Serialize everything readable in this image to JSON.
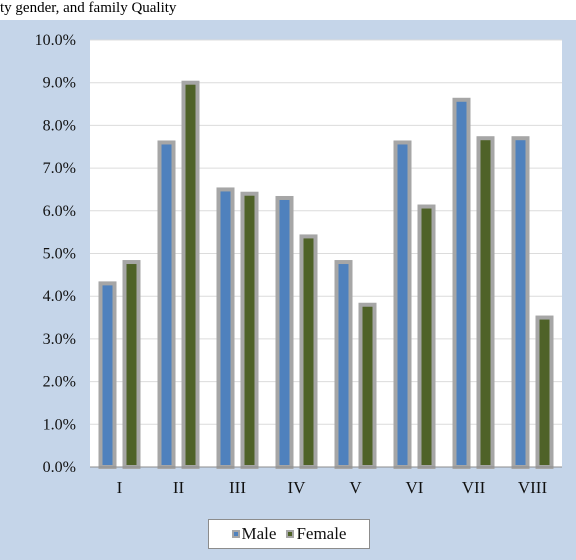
{
  "caption": "ty gender, and family Quality",
  "colors": {
    "background": "#c5d5e9",
    "plot_area": "#ffffff",
    "grid": "#dcdcdc",
    "bar_outline": "#a6a6a6",
    "male": "#4f81bd",
    "female": "#4f6228"
  },
  "chart_data": {
    "type": "bar",
    "title": "",
    "xlabel": "",
    "ylabel": "",
    "categories": [
      "I",
      "II",
      "III",
      "IV",
      "V",
      "VI",
      "VII",
      "VIII"
    ],
    "series": [
      {
        "name": "Male",
        "color": "#4f81bd",
        "values": [
          4.3,
          7.6,
          6.5,
          6.3,
          4.8,
          7.6,
          8.6,
          7.7
        ]
      },
      {
        "name": "Female",
        "color": "#4f6228",
        "values": [
          4.8,
          9.0,
          6.4,
          5.4,
          3.8,
          6.1,
          7.7,
          3.5
        ]
      }
    ],
    "ylim": [
      0,
      10
    ],
    "y_ticks": [
      "0.0%",
      "1.0%",
      "2.0%",
      "3.0%",
      "4.0%",
      "5.0%",
      "6.0%",
      "7.0%",
      "8.0%",
      "9.0%",
      "10.0%"
    ],
    "grid": true,
    "legend_position": "bottom"
  }
}
